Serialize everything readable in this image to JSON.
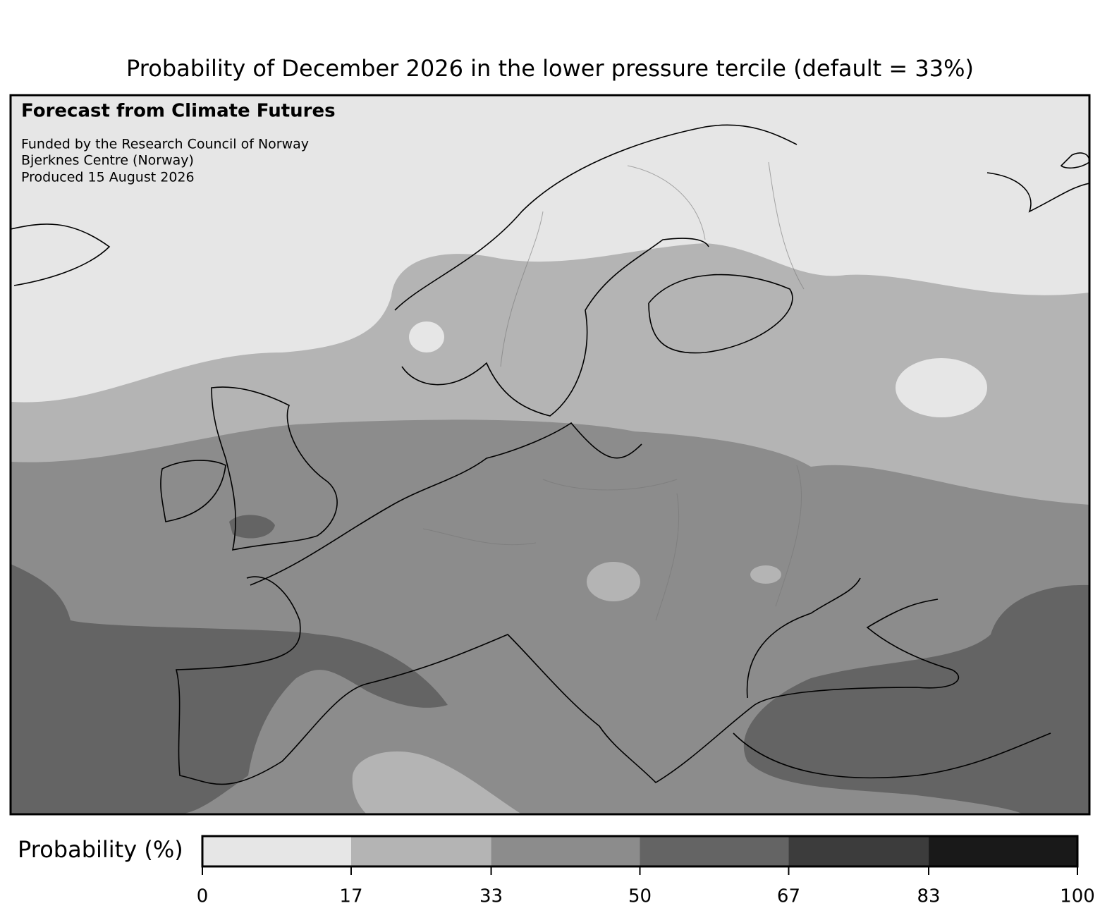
{
  "title": "Probability of December 2026 in the lower pressure tercile (default = 33%)",
  "annotations": {
    "heading": "Forecast from Climate Futures",
    "lines": [
      "Funded by the Research Council of Norway",
      "Bjerknes Centre (Norway)",
      "Produced 15 August 2026"
    ]
  },
  "colorbar": {
    "label": "Probability (%)",
    "lim": [
      0,
      100
    ],
    "ticks": [
      0,
      17,
      33,
      50,
      67,
      83,
      100
    ],
    "colors": [
      "#e6e6e6",
      "#b4b4b4",
      "#8c8c8c",
      "#646464",
      "#3c3c3c",
      "#191919"
    ]
  }
}
